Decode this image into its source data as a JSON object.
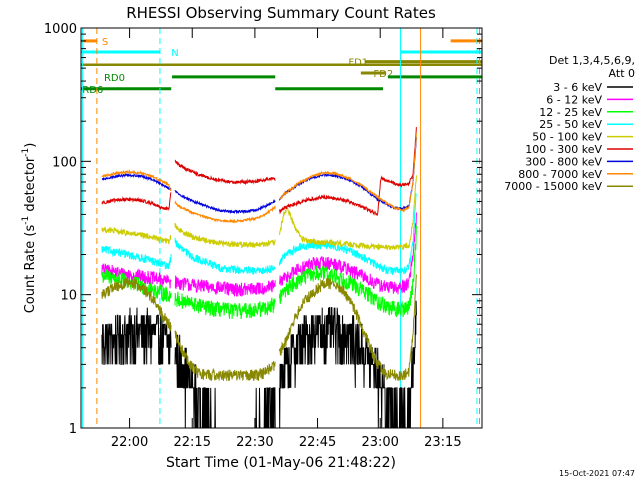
{
  "chart_data": {
    "type": "line",
    "title": "RHESSI Observing Summary Count Rates",
    "xlabel": "Start Time (01-May-06 21:48:22)",
    "ylabel_main": "Count Rate (s",
    "ylabel_sup1": "-1",
    "ylabel_mid": " detector",
    "ylabel_sup2": "-1",
    "ylabel_end": ")",
    "x_unit": "minutes after 21:48:22",
    "xlim": [
      0,
      96
    ],
    "ylim": [
      1,
      1000
    ],
    "yscale": "log",
    "x_ticks": [
      {
        "t": 11.63,
        "label": "22:00"
      },
      {
        "t": 26.63,
        "label": "22:15"
      },
      {
        "t": 41.63,
        "label": "22:30"
      },
      {
        "t": 56.63,
        "label": "22:45"
      },
      {
        "t": 71.63,
        "label": "23:00"
      },
      {
        "t": 86.63,
        "label": "23:15"
      }
    ],
    "y_ticks": [
      {
        "v": 1,
        "label": "1"
      },
      {
        "v": 10,
        "label": "10"
      },
      {
        "v": 100,
        "label": "100"
      },
      {
        "v": 1000,
        "label": "1000"
      }
    ],
    "legend": {
      "placement": "right",
      "header_line1": "Det 1,3,4,5,6,9,",
      "header_line2": "Att 0",
      "entries": [
        {
          "label": "3 - 6 keV",
          "color": "#000000"
        },
        {
          "label": "6 - 12 keV",
          "color": "#ff00ff"
        },
        {
          "label": "12 - 25 keV",
          "color": "#00ff00"
        },
        {
          "label": "25 - 50 keV",
          "color": "#00ffff"
        },
        {
          "label": "50 - 100 keV",
          "color": "#cccc00"
        },
        {
          "label": "100 - 300 keV",
          "color": "#dd0000"
        },
        {
          "label": "300 - 800 keV",
          "color": "#0000dd"
        },
        {
          "label": "800 - 7000 keV",
          "color": "#ff8800"
        },
        {
          "label": "7000 - 15000 keV",
          "color": "#888800"
        }
      ]
    },
    "segments": [
      [
        4.1,
        21.6
      ],
      [
        22.5,
        46.5
      ],
      [
        47.5,
        80.3
      ]
    ],
    "series": [
      {
        "name": "3 - 6 keV",
        "color": "#000000",
        "t": [
          5,
          8,
          11,
          14,
          17,
          19,
          21,
          22.5,
          24,
          27,
          30,
          33,
          36,
          39,
          42,
          44,
          46.4,
          47.5,
          49,
          52,
          55,
          58,
          61,
          64,
          67,
          69,
          71,
          73,
          75,
          77,
          78.5,
          79.5,
          80.3
        ],
        "v": [
          4.5,
          4.8,
          5.2,
          5.3,
          5.2,
          4.8,
          4.5,
          4.0,
          3.0,
          2.0,
          1.4,
          1.1,
          1.0,
          1.0,
          1.1,
          1.2,
          1.5,
          2.3,
          3.0,
          4.3,
          5.2,
          5.6,
          5.4,
          4.9,
          4.2,
          3.5,
          2.5,
          1.8,
          1.4,
          1.3,
          1.5,
          3.0,
          8.0
        ],
        "noise": 0.45
      },
      {
        "name": "6 - 12 keV",
        "color": "#ff00ff",
        "t": [
          5,
          8,
          11,
          14,
          17,
          19,
          21,
          22.5,
          24,
          27,
          30,
          33,
          36,
          39,
          42,
          44,
          46.4,
          47.5,
          49,
          52,
          55,
          58,
          61,
          64,
          67,
          69,
          71,
          73,
          75,
          77,
          78.5,
          79.5,
          80.3
        ],
        "v": [
          15.5,
          14.8,
          14.2,
          13.8,
          13.4,
          13.0,
          12.6,
          12.5,
          12.2,
          11.8,
          11.5,
          11.3,
          11.0,
          11.0,
          11.1,
          11.3,
          11.6,
          12.5,
          13.5,
          15.5,
          17.0,
          17.5,
          17.0,
          15.5,
          14.0,
          13.0,
          12.0,
          11.5,
          11.2,
          11.5,
          12.5,
          20.0,
          40.0
        ],
        "noise": 0.12
      },
      {
        "name": "12 - 25 keV",
        "color": "#00ff00",
        "t": [
          5,
          8,
          11,
          14,
          17,
          19,
          21,
          22.5,
          24,
          27,
          30,
          33,
          36,
          39,
          42,
          44,
          46.4,
          47.5,
          49,
          52,
          55,
          58,
          61,
          64,
          67,
          69,
          71,
          73,
          75,
          77,
          78.5,
          79.5,
          80.3
        ],
        "v": [
          14.0,
          13.5,
          12.5,
          11.8,
          11.0,
          10.5,
          10.0,
          9.5,
          9.0,
          8.5,
          8.0,
          7.8,
          7.6,
          7.6,
          7.8,
          8.0,
          8.5,
          9.5,
          11.0,
          13.0,
          14.2,
          14.5,
          13.8,
          12.5,
          11.0,
          10.0,
          9.0,
          8.2,
          7.8,
          7.8,
          8.2,
          12.0,
          30.0
        ],
        "noise": 0.14
      },
      {
        "name": "25 - 50 keV",
        "color": "#00ffff",
        "t": [
          5,
          8,
          11,
          14,
          17,
          19,
          21,
          22.5,
          24,
          27,
          30,
          33,
          36,
          39,
          42,
          44,
          46.4,
          47.5,
          49,
          52,
          55,
          58,
          61,
          64,
          67,
          69,
          71,
          73,
          75,
          77,
          78.5,
          79.5,
          80.3
        ],
        "v": [
          22.0,
          21.0,
          20.0,
          19.0,
          18.0,
          17.0,
          16.5,
          25.0,
          22.0,
          19.0,
          17.5,
          16.0,
          15.5,
          15.2,
          15.0,
          15.3,
          16.0,
          17.5,
          20.0,
          22.5,
          23.5,
          23.8,
          23.0,
          21.5,
          19.5,
          18.0,
          16.5,
          15.5,
          15.0,
          15.2,
          16.0,
          25.0,
          60.0
        ],
        "noise": 0.07
      },
      {
        "name": "50 - 100 keV",
        "color": "#cccc00",
        "t": [
          5,
          8,
          11,
          14,
          17,
          19,
          21,
          22.5,
          24,
          27,
          30,
          33,
          36,
          39,
          42,
          44,
          46.4,
          47.5,
          48.5,
          49.5,
          51,
          53,
          55,
          58,
          61,
          64,
          67,
          69,
          71,
          73,
          75,
          77,
          78.5,
          79.5,
          80.3
        ],
        "v": [
          31.0,
          30.0,
          29.0,
          28.0,
          27.0,
          26.0,
          25.0,
          33.0,
          30.0,
          27.0,
          25.5,
          24.5,
          24.0,
          23.8,
          23.8,
          24.0,
          24.5,
          28.0,
          40.0,
          44.0,
          33.0,
          26.0,
          25.0,
          24.8,
          24.5,
          24.0,
          23.5,
          23.0,
          22.8,
          22.6,
          22.5,
          22.8,
          23.5,
          35.0,
          80.0
        ],
        "noise": 0.05
      },
      {
        "name": "100 - 300 keV",
        "color": "#dd0000",
        "t": [
          5,
          8,
          11,
          14,
          17,
          19,
          21,
          22.5,
          24,
          27,
          30,
          33,
          36,
          39,
          42,
          44,
          46.4,
          47.5,
          49,
          52,
          55,
          58,
          61,
          64,
          67,
          69,
          71,
          71.8,
          73,
          75,
          77,
          78.5,
          79.5,
          80.3
        ],
        "v": [
          49.0,
          51.0,
          52.0,
          51.0,
          48.5,
          45.5,
          43.5,
          100.0,
          92.0,
          82.0,
          76.0,
          72.0,
          70.0,
          70.0,
          71.0,
          73.0,
          75.0,
          42.0,
          45.0,
          49.0,
          52.0,
          54.0,
          53.0,
          50.0,
          46.0,
          43.0,
          40.0,
          75.0,
          72.0,
          68.0,
          66.0,
          68.0,
          80.0,
          180.0
        ],
        "noise": 0.03
      },
      {
        "name": "300 - 800 keV",
        "color": "#0000dd",
        "t": [
          5,
          8,
          11,
          14,
          17,
          19,
          21,
          22.5,
          24,
          27,
          30,
          33,
          36,
          39,
          42,
          44,
          46.4,
          47.5,
          49,
          52,
          55,
          58,
          61,
          64,
          67,
          69,
          71,
          73,
          75,
          77,
          78.5,
          79.5,
          80.3
        ],
        "v": [
          73.0,
          77.0,
          79.0,
          78.0,
          73.0,
          68.0,
          63.0,
          60.0,
          55.0,
          50.0,
          46.0,
          43.0,
          42.0,
          42.0,
          43.0,
          46.0,
          50.0,
          52.0,
          58.0,
          67.0,
          75.0,
          79.0,
          78.0,
          73.0,
          65.0,
          58.0,
          52.0,
          48.0,
          45.0,
          44.0,
          46.0,
          70.0,
          150.0
        ],
        "noise": 0.02
      },
      {
        "name": "800 - 7000 keV",
        "color": "#ff8800",
        "t": [
          5,
          8,
          11,
          14,
          17,
          19,
          21,
          22.5,
          24,
          27,
          30,
          33,
          36,
          39,
          42,
          44,
          46.4,
          47.5,
          49,
          52,
          55,
          58,
          61,
          64,
          67,
          69,
          71,
          73,
          75,
          77,
          78.5,
          79.5,
          80.3
        ],
        "v": [
          77.0,
          81.0,
          83.0,
          82.0,
          77.0,
          72.0,
          67.0,
          49.0,
          45.0,
          41.0,
          38.0,
          36.0,
          35.5,
          36.0,
          37.5,
          40.0,
          45.0,
          52.0,
          58.0,
          68.0,
          77.0,
          82.0,
          81.0,
          75.0,
          67.0,
          60.0,
          54.0,
          49.0,
          45.0,
          43.0,
          45.0,
          70.0,
          160.0
        ],
        "noise": 0.02
      },
      {
        "name": "7000 - 15000 keV",
        "color": "#888800",
        "t": [
          5,
          7,
          9,
          11,
          13,
          15,
          17,
          19,
          21,
          22.5,
          24,
          26,
          28,
          30,
          33,
          36,
          39,
          42,
          44,
          46.4,
          47.5,
          49,
          51,
          53,
          55,
          57,
          59,
          61,
          63,
          65,
          67,
          69,
          71,
          73,
          75,
          77,
          78.5,
          79.5,
          80.3
        ],
        "v": [
          10.0,
          11.0,
          11.8,
          12.2,
          12.0,
          11.0,
          9.5,
          7.5,
          6.0,
          5.0,
          4.0,
          3.0,
          2.6,
          2.5,
          2.5,
          2.5,
          2.5,
          2.5,
          2.6,
          3.0,
          3.6,
          4.5,
          6.5,
          8.5,
          10.0,
          11.5,
          12.2,
          11.8,
          10.5,
          8.5,
          6.0,
          4.2,
          3.0,
          2.6,
          2.5,
          2.5,
          2.6,
          5.0,
          15.0
        ],
        "noise": 0.1
      }
    ],
    "attenuator_level": {
      "name": "attenuator",
      "label": "",
      "color": "#888800",
      "t": [
        0,
        96
      ],
      "v": 530
    },
    "flags": [
      {
        "name": "saa",
        "label": "S",
        "color": "#ff8800",
        "level": 800,
        "label_t": 5.0,
        "intervals": [
          [
            0,
            3.8
          ],
          [
            88.5,
            96
          ]
        ]
      },
      {
        "name": "night",
        "label": "N",
        "color": "#00ffff",
        "level": 660,
        "label_t": 21.6,
        "intervals": [
          [
            0,
            18.9
          ],
          [
            76.5,
            96
          ]
        ]
      },
      {
        "name": "fd1",
        "label": "FD1",
        "color": "#888800",
        "level": 560,
        "label_t": 64.0,
        "intervals": [
          [
            68,
            96
          ]
        ]
      },
      {
        "name": "fd2",
        "label": "FD2",
        "color": "#888800",
        "level": 460,
        "label_t": 70.0,
        "intervals": [
          [
            67,
            73
          ]
        ]
      },
      {
        "name": "rd0",
        "label": "RD0",
        "color": "#008800",
        "level": 430,
        "label_t": 5.5,
        "intervals": [
          [
            21.8,
            46.5
          ],
          [
            73.5,
            96
          ]
        ]
      },
      {
        "name": "rd6",
        "label": "RD6",
        "color": "#008800",
        "level": 350,
        "label_t": 0.3,
        "intervals": [
          [
            0,
            21.6
          ],
          [
            46.5,
            72.3
          ]
        ]
      }
    ],
    "vlines": [
      {
        "t": 0.4,
        "color": "#00ffff",
        "dash": "none",
        "ymin": 1,
        "ymax": 1000
      },
      {
        "t": 3.8,
        "color": "#ff8800",
        "dash": "6,4",
        "ymin": 1,
        "ymax": 1000
      },
      {
        "t": 18.9,
        "color": "#00ffff",
        "dash": "6,4",
        "ymin": 1,
        "ymax": 1000
      },
      {
        "t": 76.5,
        "color": "#00ffff",
        "dash": "none",
        "ymin": 1,
        "ymax": 1000
      },
      {
        "t": 81.3,
        "color": "#ff8800",
        "dash": "none",
        "ymin": 1,
        "ymax": 1000
      },
      {
        "t": 94.8,
        "color": "#00ffff",
        "dash": "6,4",
        "ymin": 1,
        "ymax": 1000
      },
      {
        "t": 95.4,
        "color": "#ff8800",
        "dash": "6,4",
        "ymin": 1,
        "ymax": 1000
      }
    ],
    "timestamp": "15-Oct-2021 07:47"
  }
}
